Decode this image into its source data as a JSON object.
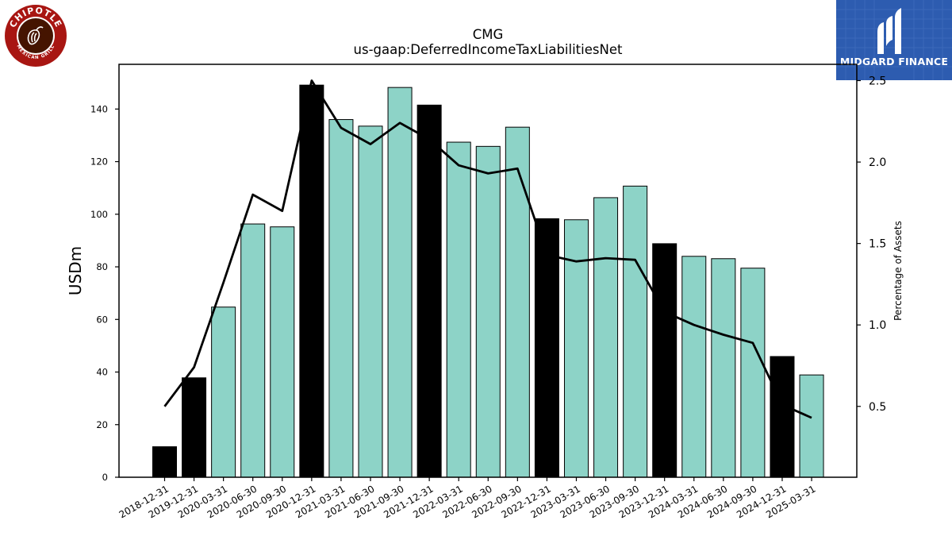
{
  "logos": {
    "left": {
      "text_top": "CHIPOTLE",
      "text_bottom": "MEXICAN GRILL",
      "color": "#a81612",
      "icon": "chipotle-pepper-icon"
    },
    "right": {
      "text": "MIDGARD FINANCE",
      "color": "#2d5cb0",
      "icon": "midgard-m-icon"
    }
  },
  "chart_data": {
    "type": "bar",
    "title": "CMG",
    "subtitle": "us-gaap:DeferredIncomeTaxLiabilitiesNet",
    "ylabel": "USDm",
    "y2label": "Percentage of Assets",
    "ylim": [
      0,
      157
    ],
    "y2lim": [
      0.065,
      2.6
    ],
    "yticks": [
      0,
      20,
      40,
      60,
      80,
      100,
      120,
      140
    ],
    "y2ticks": [
      0.5,
      1.0,
      1.5,
      2.0,
      2.5
    ],
    "categories": [
      "2018-12-31",
      "2019-12-31",
      "2020-03-31",
      "2020-06-30",
      "2020-09-30",
      "2020-12-31",
      "2021-03-31",
      "2021-06-30",
      "2021-09-30",
      "2021-12-31",
      "2022-03-31",
      "2022-06-30",
      "2022-09-30",
      "2022-12-31",
      "2023-03-31",
      "2023-06-30",
      "2023-09-30",
      "2023-12-31",
      "2024-03-31",
      "2024-06-30",
      "2024-09-30",
      "2024-12-31",
      "2025-03-31"
    ],
    "series": [
      {
        "type": "bar",
        "values": [
          11.6,
          37.8,
          64.7,
          96.3,
          95.2,
          149.1,
          136.0,
          133.5,
          148.2,
          141.5,
          127.4,
          125.8,
          133.1,
          98.3,
          97.9,
          106.3,
          110.7,
          88.8,
          84.0,
          83.1,
          79.5,
          45.9,
          38.9
        ],
        "annual": [
          true,
          true,
          false,
          false,
          false,
          true,
          false,
          false,
          false,
          true,
          false,
          false,
          false,
          true,
          false,
          false,
          false,
          true,
          false,
          false,
          false,
          true,
          false
        ],
        "annual_color": "#000000",
        "quarter_color": "#8dd3c7"
      },
      {
        "type": "line",
        "axis": "right",
        "color": "#000000",
        "values": [
          0.5,
          0.74,
          1.26,
          1.8,
          1.7,
          2.5,
          2.21,
          2.11,
          2.24,
          2.14,
          1.98,
          1.93,
          1.96,
          1.43,
          1.39,
          1.41,
          1.4,
          1.08,
          1.0,
          0.94,
          0.89,
          0.51,
          0.43
        ]
      }
    ]
  }
}
